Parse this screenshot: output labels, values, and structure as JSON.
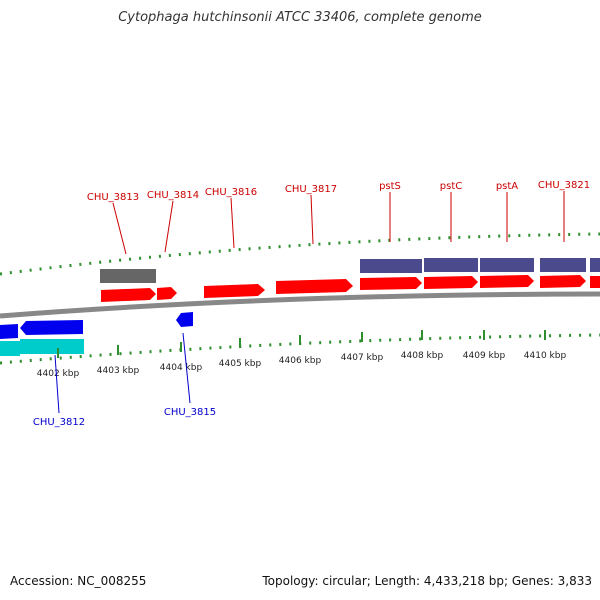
{
  "title": "Cytophaga hutchinsonii ATCC 33406, complete genome",
  "footer": {
    "accession": "Accession: NC_008255",
    "summary": "Topology: circular; Length: 4,433,218 bp; Genes: 3,833"
  },
  "colors": {
    "forward_cds": "#ff0000",
    "reverse_cds": "#0000ee",
    "rna_gene": "#666666",
    "forward_label": "#cc0000",
    "reverse_label": "#0000cc",
    "tick_mark": "#2f8f2f",
    "dark_feature": "#4a4a8c",
    "cyan_feature": "#00cccc",
    "backbone": "#888888"
  },
  "axis": {
    "unit": "kbp",
    "ticks": [
      "4402 kbp",
      "4403 kbp",
      "4404 kbp",
      "4405 kbp",
      "4406 kbp",
      "4407 kbp",
      "4408 kbp",
      "4409 kbp",
      "4410 kbp"
    ]
  },
  "gene_labels": {
    "forward": [
      "CHU_3813",
      "CHU_3814",
      "CHU_3816",
      "CHU_3817",
      "pstS",
      "pstC",
      "pstA",
      "CHU_3821"
    ],
    "reverse": [
      "CHU_3812",
      "CHU_3815"
    ]
  }
}
